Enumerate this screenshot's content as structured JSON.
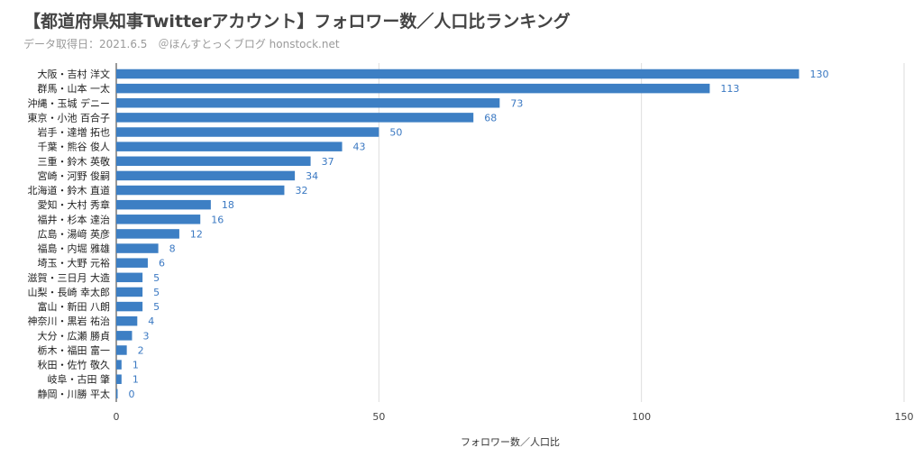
{
  "chart_data": {
    "type": "bar",
    "orientation": "horizontal",
    "title": "【都道府県知事Twitterアカウント】フォロワー数／人口比ランキング",
    "subtitle": "データ取得日：2021.6.5　＠ほんすとっくブログ honstock.net",
    "xlabel": "フォロワー数／人口比",
    "ylabel": "",
    "xlim": [
      0,
      150
    ],
    "xticks": [
      0,
      50,
      100,
      150
    ],
    "grid": true,
    "bar_color": "#3d7fc4",
    "categories": [
      "大阪・吉村 洋文",
      "群馬・山本 一太",
      "沖縄・玉城 デニー",
      "東京・小池 百合子",
      "岩手・達増 拓也",
      "千葉・熊谷 俊人",
      "三重・鈴木 英敬",
      "宮崎・河野 俊嗣",
      "北海道・鈴木 直道",
      "愛知・大村 秀章",
      "福井・杉本 達治",
      "広島・湯﨑 英彦",
      "福島・内堀 雅雄",
      "埼玉・大野 元裕",
      "滋賀・三日月 大造",
      "山梨・長崎 幸太郎",
      "富山・新田 八朗",
      "神奈川・黒岩 祐治",
      "大分・広瀬 勝貞",
      "栃木・福田 富一",
      "秋田・佐竹 敬久",
      "岐阜・古田 肇",
      "静岡・川勝 平太"
    ],
    "values": [
      130,
      113,
      73,
      68,
      50,
      43,
      37,
      34,
      32,
      18,
      16,
      12,
      8,
      6,
      5,
      5,
      5,
      4,
      3,
      2,
      1,
      1,
      0
    ]
  }
}
